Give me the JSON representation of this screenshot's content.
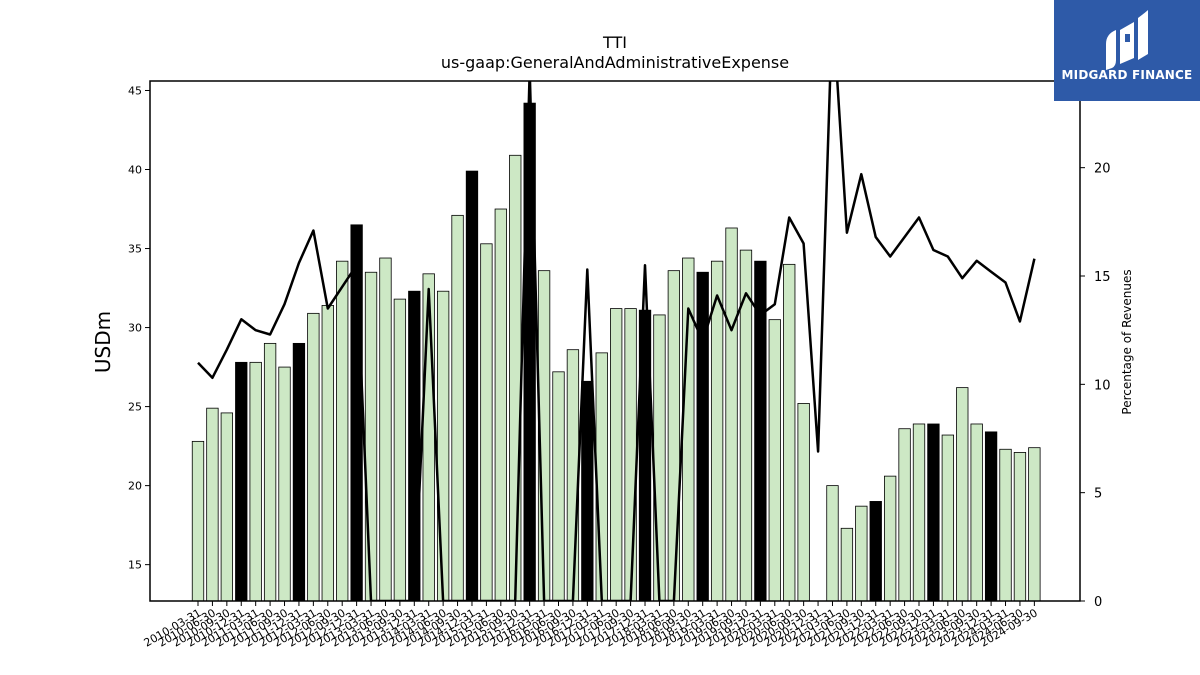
{
  "brand": {
    "name": "MIDGARD FINANCE",
    "background": "#2e5aa8"
  },
  "chart_data": {
    "type": "bar",
    "title": "TTI",
    "subtitle": "us-gaap:GeneralAndAdministrativeExpense",
    "ylabel": "USDm",
    "y2label": "Percentage of Revenues",
    "ylim": [
      12.7,
      45.6
    ],
    "y2lim": [
      0,
      24.0
    ],
    "yticks": [
      15,
      20,
      25,
      30,
      35,
      40,
      45
    ],
    "y2ticks": [
      0,
      5,
      10,
      15,
      20
    ],
    "colors": {
      "quarter": "#cde8c5",
      "annual": "#000000",
      "line": "#000000"
    },
    "x_labels": [
      "2010-03-31",
      "2010-06-30",
      "2010-09-30",
      "2010-12-31",
      "2011-03-31",
      "2011-06-30",
      "2011-09-30",
      "2011-12-31",
      "2012-03-31",
      "2012-06-30",
      "2012-09-30",
      "2012-12-31",
      "2013-03-31",
      "2013-06-30",
      "2013-09-30",
      "2013-12-31",
      "2014-03-31",
      "2014-06-30",
      "2014-09-30",
      "2014-12-31",
      "2015-03-31",
      "2015-06-30",
      "2015-09-30",
      "2015-12-31",
      "2016-03-31",
      "2016-06-30",
      "2016-09-30",
      "2016-12-31",
      "2017-03-31",
      "2017-06-30",
      "2017-09-30",
      "2017-12-31",
      "2018-03-31",
      "2018-06-30",
      "2018-09-30",
      "2018-12-31",
      "2019-03-31",
      "2019-06-30",
      "2019-09-30",
      "2019-12-31",
      "2020-03-31",
      "2020-06-30",
      "2020-09-30",
      "2020-12-31",
      "2021-03-31",
      "2021-06-30",
      "2021-09-30",
      "2021-12-31",
      "2022-03-31",
      "2022-06-30",
      "2022-09-30",
      "2022-12-31",
      "2023-03-31",
      "2023-06-30",
      "2023-09-30",
      "2023-12-31",
      "2024-03-31",
      "2024-06-30",
      "2024-09-30"
    ],
    "series": [
      {
        "kind": "bars",
        "values": [
          22.8,
          24.9,
          24.6,
          27.8,
          27.8,
          29.0,
          27.5,
          29.0,
          30.9,
          31.4,
          34.2,
          36.5,
          33.5,
          34.4,
          31.8,
          32.3,
          33.4,
          32.3,
          37.1,
          39.9,
          35.3,
          37.5,
          40.9,
          44.2,
          33.6,
          27.2,
          28.6,
          26.6,
          28.4,
          31.2,
          31.2,
          31.1,
          30.8,
          33.6,
          34.4,
          33.5,
          34.2,
          36.3,
          34.9,
          34.2,
          30.5,
          34.0,
          25.2,
          null,
          20.0,
          17.3,
          18.7,
          19.0,
          20.6,
          23.6,
          23.9,
          23.9,
          23.2,
          26.2,
          23.9,
          23.4,
          22.3,
          22.1,
          22.4
        ],
        "annual": [
          false,
          false,
          false,
          true,
          false,
          false,
          false,
          true,
          false,
          false,
          false,
          true,
          false,
          false,
          false,
          true,
          false,
          false,
          false,
          true,
          false,
          false,
          false,
          true,
          false,
          false,
          false,
          true,
          false,
          false,
          false,
          true,
          false,
          false,
          false,
          true,
          false,
          false,
          false,
          true,
          false,
          false,
          false,
          true,
          false,
          false,
          false,
          true,
          false,
          false,
          false,
          true,
          false,
          false,
          false,
          true,
          false,
          false,
          false
        ]
      },
      {
        "kind": "line",
        "values": [
          11.0,
          10.3,
          11.6,
          13.0,
          12.5,
          12.3,
          13.7,
          15.6,
          17.1,
          13.5,
          14.5,
          15.5,
          0,
          0,
          0,
          0,
          14.4,
          0,
          0,
          0,
          0,
          0,
          0,
          24.5,
          0,
          0,
          0,
          15.3,
          0,
          0,
          0,
          15.5,
          0,
          0,
          13.5,
          12.0,
          14.1,
          12.5,
          14.2,
          13.2,
          13.7,
          17.7,
          16.5,
          6.9,
          27.5,
          17.0,
          19.7,
          16.8,
          15.9,
          16.8,
          17.7,
          16.2,
          15.9,
          14.9,
          15.7,
          15.2,
          14.7,
          12.9,
          15.8
        ]
      }
    ]
  }
}
